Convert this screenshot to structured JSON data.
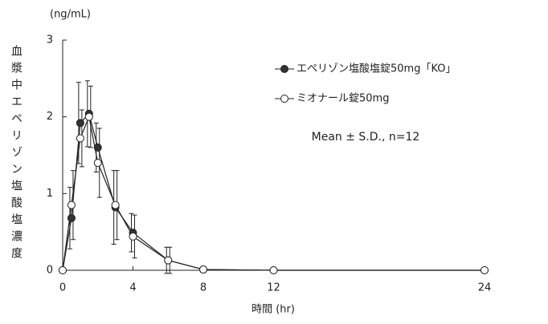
{
  "chart_data": {
    "type": "line",
    "y_unit": "(ng/mL)",
    "y_label": "血漿中エペリゾン塩酸塩濃度",
    "x_label": "時間 (hr)",
    "annotation": "Mean ± S.D., n=12",
    "x": [
      0,
      0.5,
      1,
      1.5,
      2,
      3,
      4,
      6,
      8,
      12,
      24
    ],
    "xlim": [
      0,
      24
    ],
    "xticks": [
      0,
      4,
      8,
      12,
      24
    ],
    "ylim": [
      0,
      3
    ],
    "yticks": [
      0,
      1,
      2,
      3
    ],
    "series": [
      {
        "name": "エペリゾン塩酸塩錠50mg「KO」",
        "color": "#222222",
        "marker_fill": "#333333",
        "values": [
          0,
          0.68,
          1.92,
          2.04,
          1.6,
          0.82,
          0.49,
          0.13,
          0.01,
          0,
          0
        ],
        "errors": [
          0,
          0.4,
          0.53,
          0.43,
          0.32,
          0.48,
          0.25,
          0.17,
          0,
          0,
          0
        ]
      },
      {
        "name": "ミオナール錠50mg",
        "color": "#222222",
        "marker_fill": "#ffffff",
        "values": [
          0,
          0.85,
          1.72,
          2.0,
          1.4,
          0.85,
          0.44,
          0.13,
          0.01,
          0,
          0
        ],
        "errors": [
          0,
          0.45,
          0.37,
          0.4,
          0.45,
          0.45,
          0.28,
          0.17,
          0,
          0,
          0
        ]
      }
    ]
  }
}
